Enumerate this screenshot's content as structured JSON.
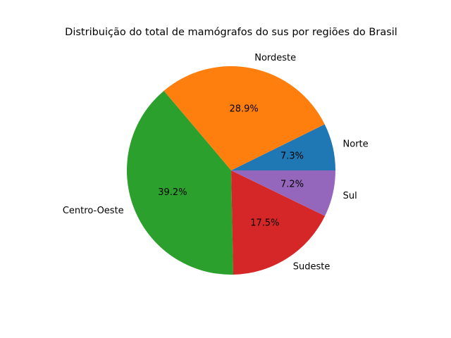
{
  "chart_data": {
    "type": "pie",
    "title": "Distribuição do total de mamógrafos do sus por regiões do Brasil",
    "start_angle_deg": 0,
    "direction": "counterclockwise",
    "slices": [
      {
        "label": "Norte",
        "value": 7.3,
        "pct_text": "7.3%",
        "color": "#1f77b4"
      },
      {
        "label": "Nordeste",
        "value": 28.9,
        "pct_text": "28.9%",
        "color": "#ff7f0e"
      },
      {
        "label": "Centro-Oeste",
        "value": 39.2,
        "pct_text": "39.2%",
        "color": "#2ca02c"
      },
      {
        "label": "Sudeste",
        "value": 17.5,
        "pct_text": "17.5%",
        "color": "#d62728"
      },
      {
        "label": "Sul",
        "value": 7.2,
        "pct_text": "7.2%",
        "color": "#9467bd"
      }
    ]
  }
}
